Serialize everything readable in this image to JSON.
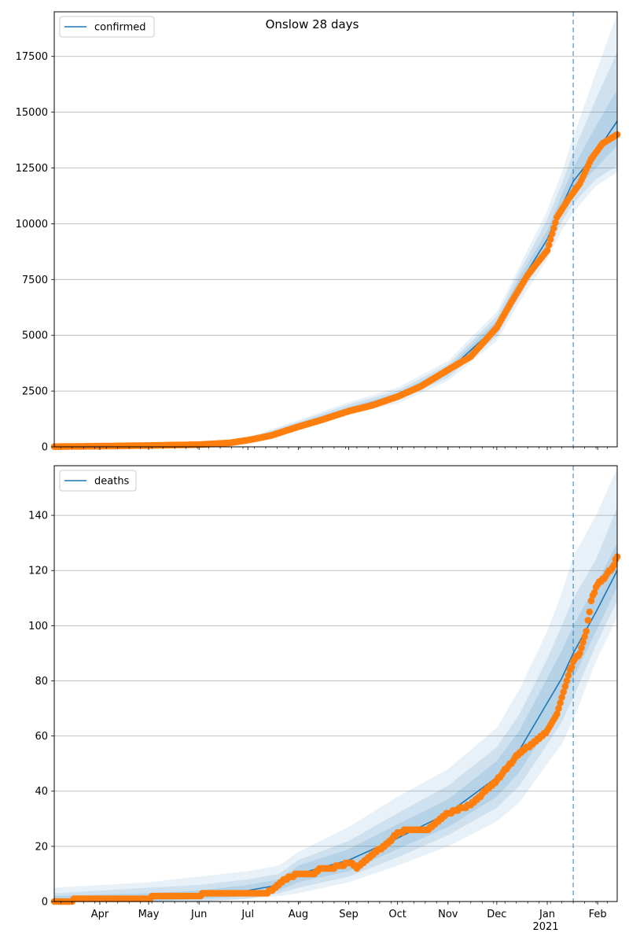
{
  "chart_data": {
    "title": "Onslow 28 days",
    "colors": {
      "model": "#1f77b4",
      "observed": "#ff7f0e",
      "band": "#1f77b4",
      "vline": "#1f77b4",
      "grid": "#b0b0b0"
    },
    "x_axis": {
      "start": "2020-03-04",
      "end": "2021-02-13",
      "tick_labels": [
        "Apr",
        "May",
        "Jun",
        "Jul",
        "Aug",
        "Sep",
        "Oct",
        "Nov",
        "Dec",
        "Jan",
        "Feb"
      ],
      "tick_dates": [
        "2020-04-01",
        "2020-05-01",
        "2020-06-01",
        "2020-07-01",
        "2020-08-01",
        "2020-09-01",
        "2020-10-01",
        "2020-11-01",
        "2020-12-01",
        "2021-01-01",
        "2021-02-01"
      ],
      "year_label": "2021"
    },
    "vline_date": "2021-01-17",
    "charts": [
      {
        "type": "line",
        "legend": "confirmed",
        "legend_position": "upper left",
        "grid": "y",
        "ylim": [
          0,
          19500
        ],
        "yticks": [
          0,
          2500,
          5000,
          7500,
          10000,
          12500,
          15000,
          17500
        ],
        "model": {
          "x": [
            "2020-03-04",
            "2020-05-01",
            "2020-06-01",
            "2020-07-01",
            "2020-08-01",
            "2020-09-01",
            "2020-10-01",
            "2020-11-01",
            "2020-12-01",
            "2020-12-15",
            "2021-01-01",
            "2021-01-10",
            "2021-01-17",
            "2021-01-31",
            "2021-02-13"
          ],
          "y": [
            0,
            60,
            100,
            300,
            1000,
            1700,
            2300,
            3400,
            5400,
            7300,
            9300,
            10800,
            11900,
            13200,
            14600
          ]
        },
        "bands": [
          {
            "lo": [
              0,
              30,
              60,
              200,
              800,
              1450,
              1950,
              2950,
              4750,
              6500,
              8400,
              9700,
              10500,
              11700,
              12300
            ],
            "hi": [
              0,
              90,
              150,
              420,
              1200,
              2000,
              2650,
              3850,
              6050,
              8100,
              10600,
              12300,
              13900,
              16800,
              19400
            ]
          },
          {
            "lo": [
              0,
              40,
              75,
              230,
              870,
              1540,
              2080,
              3100,
              4950,
              6750,
              8750,
              10100,
              10900,
              12000,
              12600
            ],
            "hi": [
              0,
              80,
              130,
              380,
              1130,
              1900,
              2520,
              3700,
              5850,
              7850,
              10200,
              11800,
              13200,
              15600,
              17700
            ]
          },
          {
            "lo": [
              0,
              50,
              85,
              260,
              930,
              1620,
              2190,
              3240,
              5150,
              7000,
              9050,
              10450,
              11400,
              12500,
              13500
            ],
            "hi": [
              0,
              70,
              115,
              340,
              1070,
              1780,
              2410,
              3560,
              5650,
              7600,
              9700,
              11300,
              12500,
              14400,
              16000
            ]
          }
        ],
        "observed": {
          "x": [
            "2020-03-04",
            "2020-04-01",
            "2020-05-01",
            "2020-06-01",
            "2020-06-20",
            "2020-07-01",
            "2020-07-15",
            "2020-08-01",
            "2020-08-15",
            "2020-09-01",
            "2020-09-15",
            "2020-10-01",
            "2020-10-15",
            "2020-11-01",
            "2020-11-15",
            "2020-12-01",
            "2020-12-10",
            "2020-12-20",
            "2021-01-01",
            "2021-01-07",
            "2021-01-14",
            "2021-01-21",
            "2021-01-28",
            "2021-02-04",
            "2021-02-13"
          ],
          "y": [
            10,
            30,
            60,
            100,
            180,
            300,
            500,
            900,
            1200,
            1600,
            1850,
            2250,
            2700,
            3450,
            4050,
            5350,
            6500,
            7700,
            8800,
            10300,
            11100,
            11800,
            12900,
            13600,
            14000
          ]
        }
      },
      {
        "type": "line",
        "legend": "deaths",
        "legend_position": "upper left",
        "grid": "y",
        "ylim": [
          0,
          158
        ],
        "yticks": [
          0,
          20,
          40,
          60,
          80,
          100,
          120,
          140
        ],
        "model": {
          "x": [
            "2020-03-04",
            "2020-05-01",
            "2020-06-01",
            "2020-07-01",
            "2020-07-20",
            "2020-08-01",
            "2020-09-01",
            "2020-10-01",
            "2020-11-01",
            "2020-12-01",
            "2020-12-15",
            "2021-01-01",
            "2021-01-10",
            "2021-01-17",
            "2021-01-31",
            "2021-02-13"
          ],
          "y": [
            0,
            1,
            2,
            4,
            6,
            10,
            15,
            23,
            32,
            45,
            55,
            72,
            81,
            90,
            105,
            120
          ]
        },
        "bands": [
          {
            "lo": [
              0,
              0,
              0,
              1,
              2,
              3,
              7,
              13,
              20,
              29,
              36,
              50,
              57,
              66,
              87,
              103
            ],
            "hi": [
              5,
              7,
              9,
              11,
              13,
              18,
              27,
              38,
              48,
              63,
              77,
              98,
              112,
              125,
              140,
              157
            ]
          },
          {
            "lo": [
              0,
              0,
              0,
              1,
              3,
              5,
              9,
              16,
              24,
              34,
              42,
              57,
              65,
              74,
              93,
              109
            ],
            "hi": [
              3,
              5,
              6,
              8,
              10,
              15,
              22,
              32,
              42,
              56,
              68,
              88,
              100,
              110,
              124,
              143
            ]
          },
          {
            "lo": [
              0,
              0,
              1,
              2,
              4,
              7,
              11,
              19,
              27,
              38,
              47,
              63,
              72,
              81,
              98,
              114
            ],
            "hi": [
              2,
              3,
              4,
              6,
              8,
              13,
              19,
              28,
              37,
              51,
              62,
              81,
              91,
              100,
              115,
              130
            ]
          }
        ],
        "observed": {
          "x": [
            "2020-03-04",
            "2020-03-28",
            "2020-05-01",
            "2020-05-05",
            "2020-07-01",
            "2020-07-12",
            "2020-07-18",
            "2020-07-24",
            "2020-08-01",
            "2020-08-10",
            "2020-08-15",
            "2020-08-22",
            "2020-08-26",
            "2020-09-02",
            "2020-09-06",
            "2020-09-15",
            "2020-09-25",
            "2020-10-01",
            "2020-10-08",
            "2020-10-20",
            "2020-11-01",
            "2020-11-15",
            "2020-12-01",
            "2020-12-15",
            "2020-12-25",
            "2021-01-01",
            "2021-01-07",
            "2021-01-10",
            "2021-01-14",
            "2021-01-17",
            "2021-01-21",
            "2021-01-25",
            "2021-01-28",
            "2021-02-01",
            "2021-02-06",
            "2021-02-11",
            "2021-02-13"
          ],
          "y": [
            0,
            1,
            1,
            2,
            3,
            3,
            5,
            8,
            10,
            10,
            12,
            12,
            13,
            14,
            12,
            17,
            21,
            25,
            26,
            26,
            32,
            35,
            44,
            54,
            58,
            62,
            68,
            74,
            82,
            87,
            90,
            98,
            109,
            115,
            118,
            122,
            125
          ]
        }
      }
    ]
  }
}
